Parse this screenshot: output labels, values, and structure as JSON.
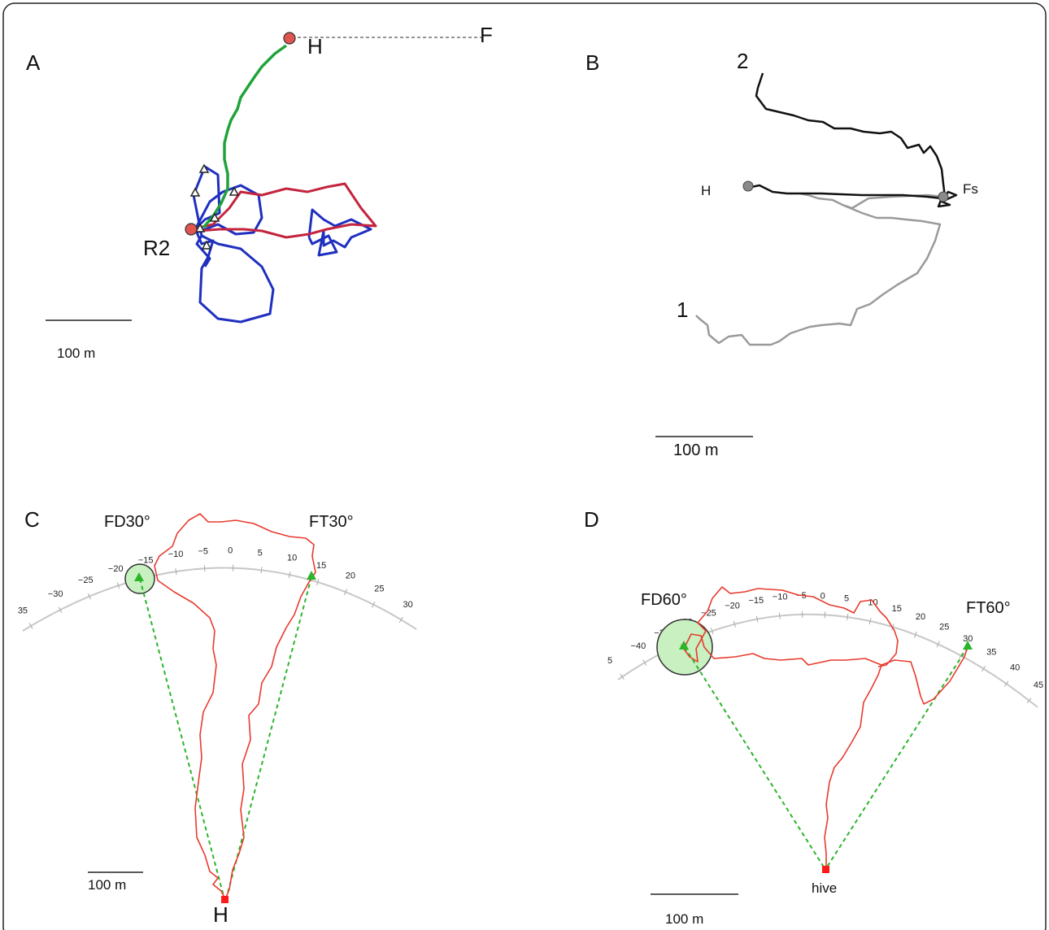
{
  "panels": {
    "A": {
      "letter": "A",
      "labels": {
        "hive": "H",
        "feeder": "F",
        "release": "R2"
      },
      "scale": "100 m",
      "colors": {
        "homing": "#1fa33a",
        "search": "#1f2fbf",
        "outbound": "#c4243e",
        "point": "#e0554f"
      }
    },
    "B": {
      "letter": "B",
      "labels": {
        "hive": "H",
        "feeder": "Fs",
        "flight1": "1",
        "flight2": "2"
      },
      "scale": "100 m",
      "colors": {
        "flight1": "#9a9a9a",
        "flight2": "#111111"
      }
    },
    "C": {
      "letter": "C",
      "labels": {
        "left": "FD30°",
        "right": "FT30°",
        "hive": "H"
      },
      "scale": "100 m",
      "ticks": [
        "35",
        "−30",
        "−25",
        "−20",
        "−15",
        "−10",
        "−5",
        "0",
        "5",
        "10",
        "15",
        "20",
        "25",
        "30"
      ],
      "colors": {
        "track": "#e83a2e",
        "marker": "#2bb52b",
        "circle": "#c8f0c0"
      }
    },
    "D": {
      "letter": "D",
      "labels": {
        "left": "FD60°",
        "right": "FT60°",
        "hive": "hive"
      },
      "scale": "100 m",
      "ticks": [
        "5",
        "−40",
        "−35",
        "−30",
        "−25",
        "−20",
        "−15",
        "−10",
        "−5",
        "0",
        "5",
        "10",
        "15",
        "20",
        "25",
        "30",
        "35",
        "40",
        "45"
      ],
      "colors": {
        "track": "#e83a2e",
        "marker": "#2bb52b",
        "circle": "#c8f0c0"
      }
    }
  }
}
